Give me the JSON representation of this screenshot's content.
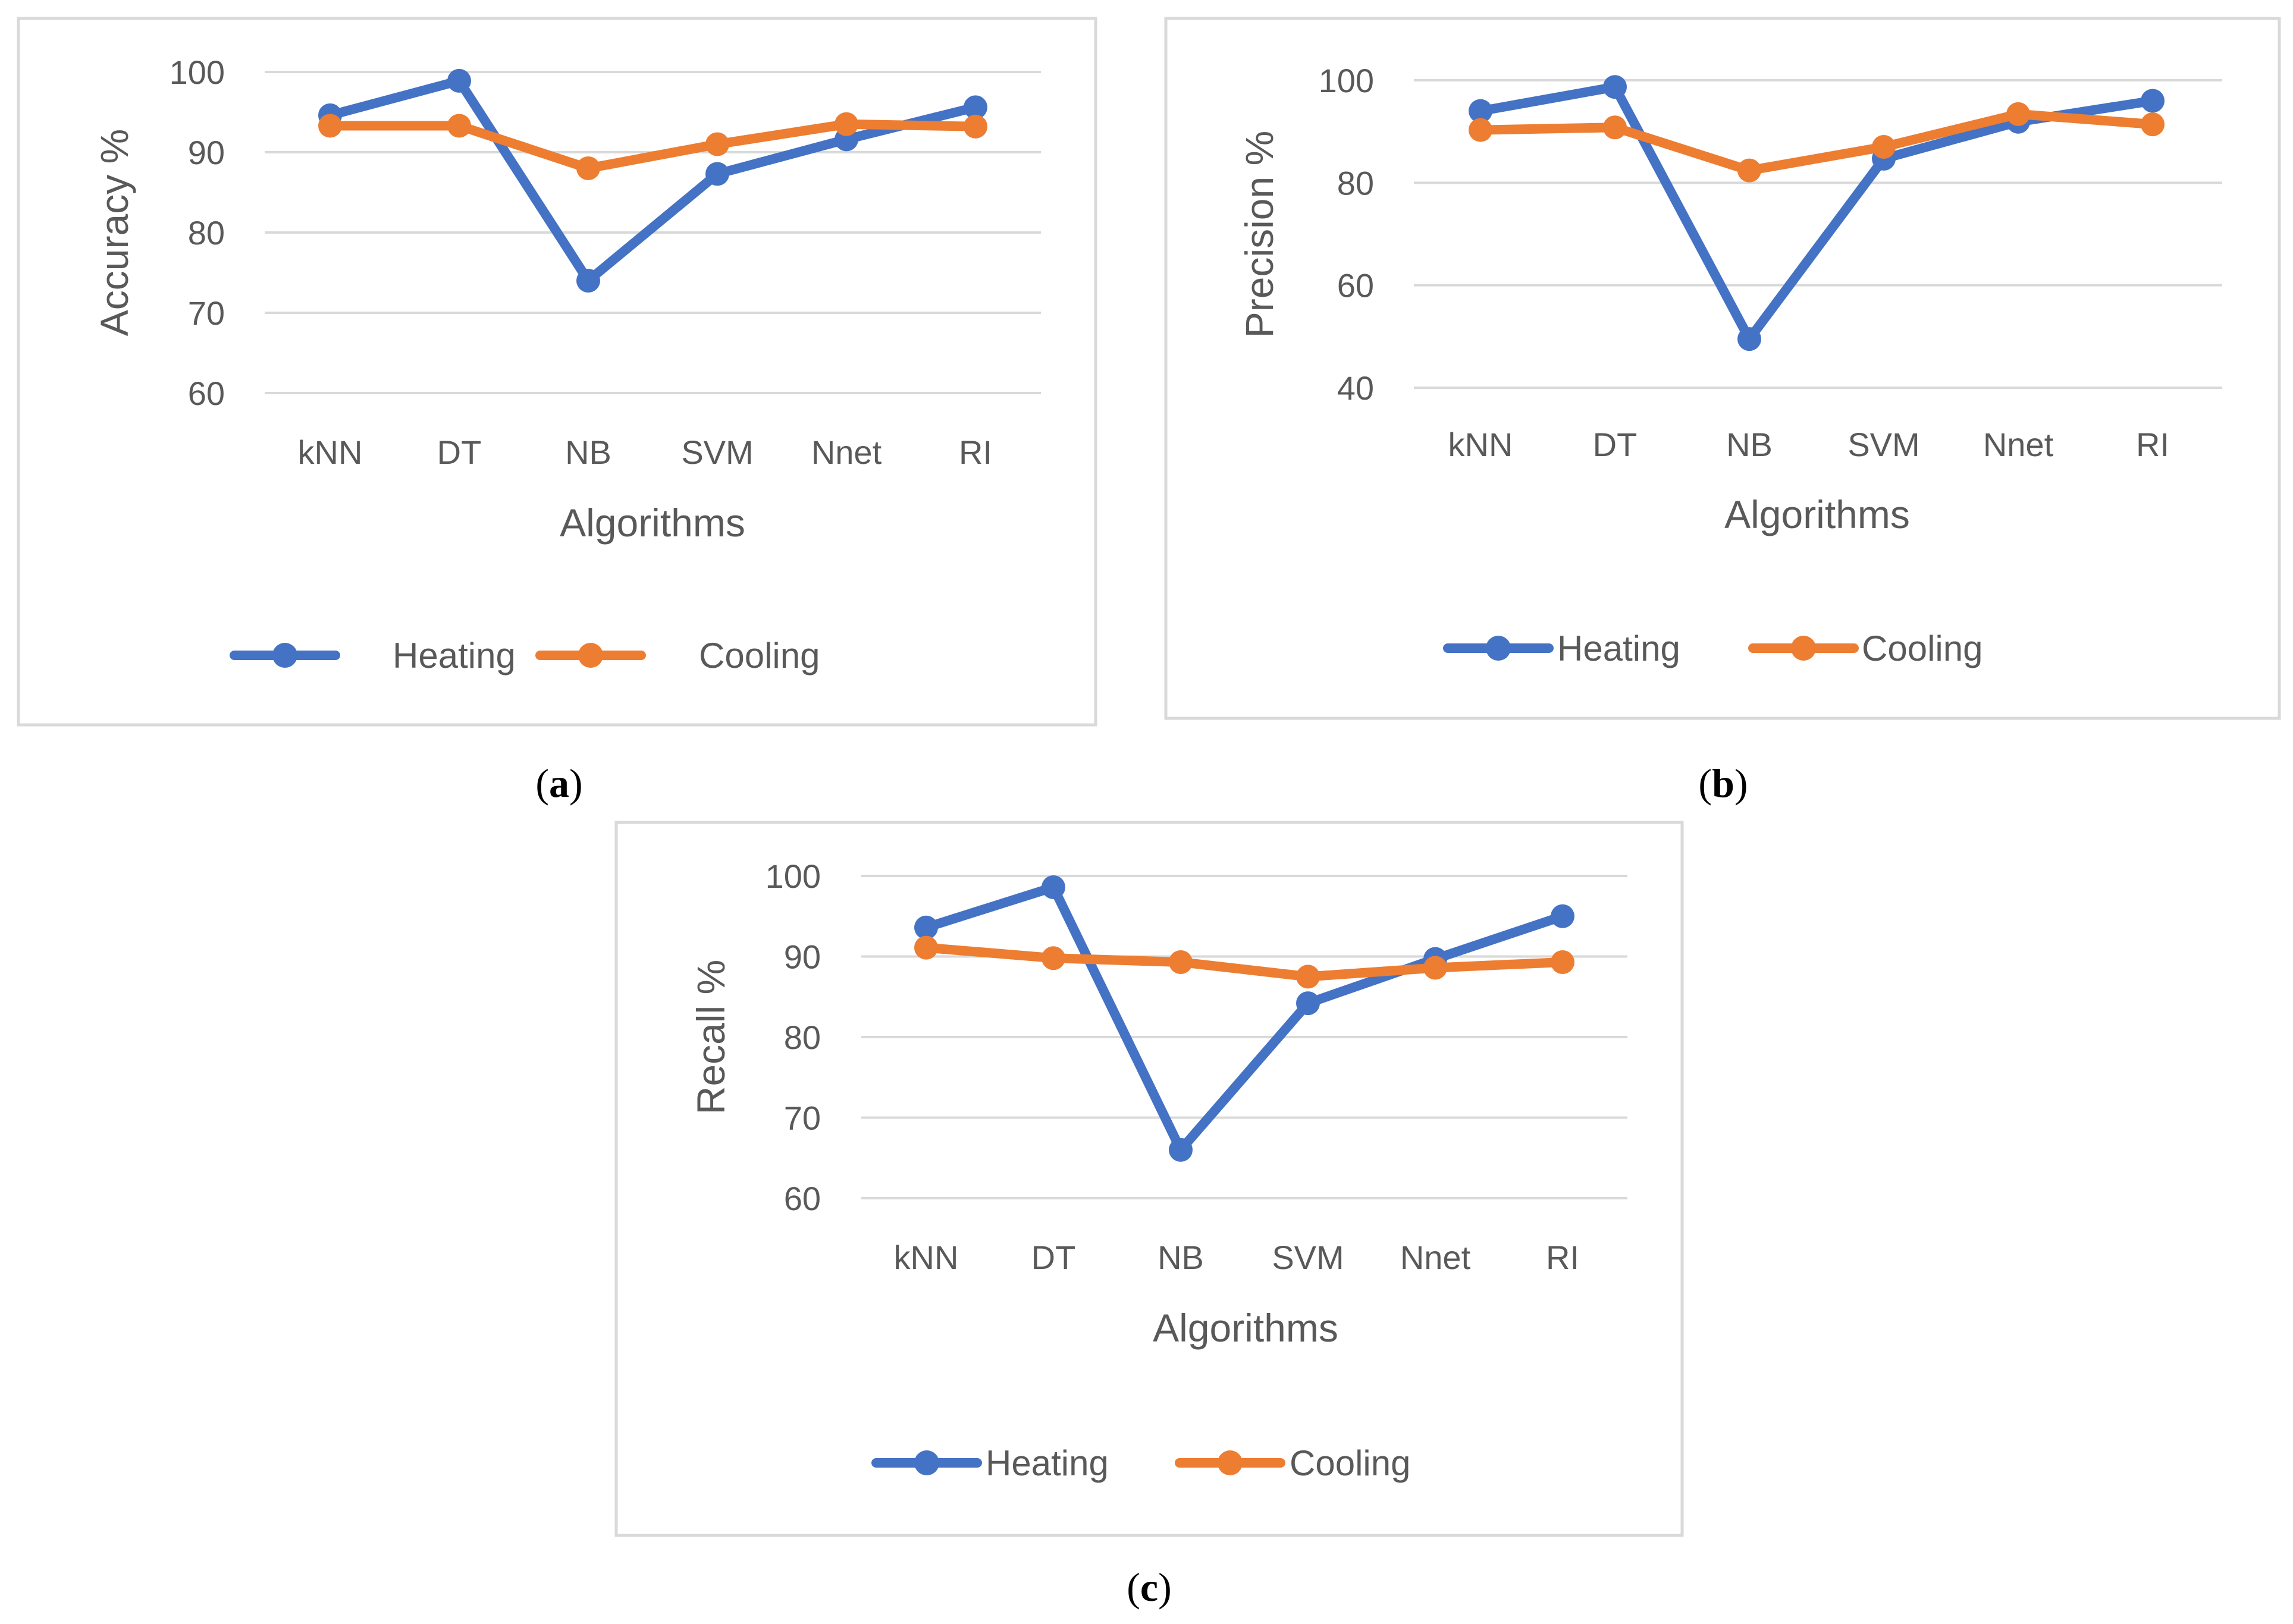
{
  "chart_data": [
    {
      "type": "line",
      "panel": "(a)",
      "caption_open": "(",
      "caption_letter": "a",
      "caption_close": ")",
      "categories": [
        "kNN",
        "DT",
        "NB",
        "SVM",
        "Nnet",
        "RI"
      ],
      "series": [
        {
          "name": "Heating",
          "color": "#4472C4",
          "values": [
            94.6,
            98.9,
            74.0,
            87.3,
            91.6,
            95.6
          ]
        },
        {
          "name": "Cooling",
          "color": "#ED7D31",
          "values": [
            93.3,
            93.3,
            88.0,
            91.0,
            93.5,
            93.2
          ]
        }
      ],
      "title": "",
      "xlabel": "Algorithms",
      "ylabel": "Accuracy %",
      "ylim": [
        60,
        100
      ],
      "yticks": [
        60,
        70,
        80,
        90,
        100
      ],
      "grid": true,
      "legend": "bottom"
    },
    {
      "type": "line",
      "panel": "(b)",
      "caption_open": "(",
      "caption_letter": "b",
      "caption_close": ")",
      "categories": [
        "kNN",
        "DT",
        "NB",
        "SVM",
        "Nnet",
        "RI"
      ],
      "series": [
        {
          "name": "Heating",
          "color": "#4472C4",
          "values": [
            94.0,
            98.7,
            49.5,
            84.7,
            91.9,
            96.0
          ]
        },
        {
          "name": "Cooling",
          "color": "#ED7D31",
          "values": [
            90.3,
            90.8,
            82.4,
            87.0,
            93.4,
            91.4
          ]
        }
      ],
      "title": "",
      "xlabel": "Algorithms",
      "ylabel": "Precision %",
      "ylim": [
        40,
        100
      ],
      "yticks": [
        40,
        60,
        80,
        100
      ],
      "grid": true,
      "legend": "bottom"
    },
    {
      "type": "line",
      "panel": "(c)",
      "caption_open": "(",
      "caption_letter": "c",
      "caption_close": ")",
      "categories": [
        "kNN",
        "DT",
        "NB",
        "SVM",
        "Nnet",
        "RI"
      ],
      "series": [
        {
          "name": "Heating",
          "color": "#4472C4",
          "values": [
            93.6,
            98.6,
            66.0,
            84.2,
            89.7,
            95.0
          ]
        },
        {
          "name": "Cooling",
          "color": "#ED7D31",
          "values": [
            91.1,
            89.8,
            89.3,
            87.5,
            88.6,
            89.3
          ]
        }
      ],
      "title": "",
      "xlabel": "Algorithms",
      "ylabel": "Recall %",
      "ylim": [
        60,
        100
      ],
      "yticks": [
        60,
        70,
        80,
        90,
        100
      ],
      "grid": true,
      "legend": "bottom"
    }
  ]
}
